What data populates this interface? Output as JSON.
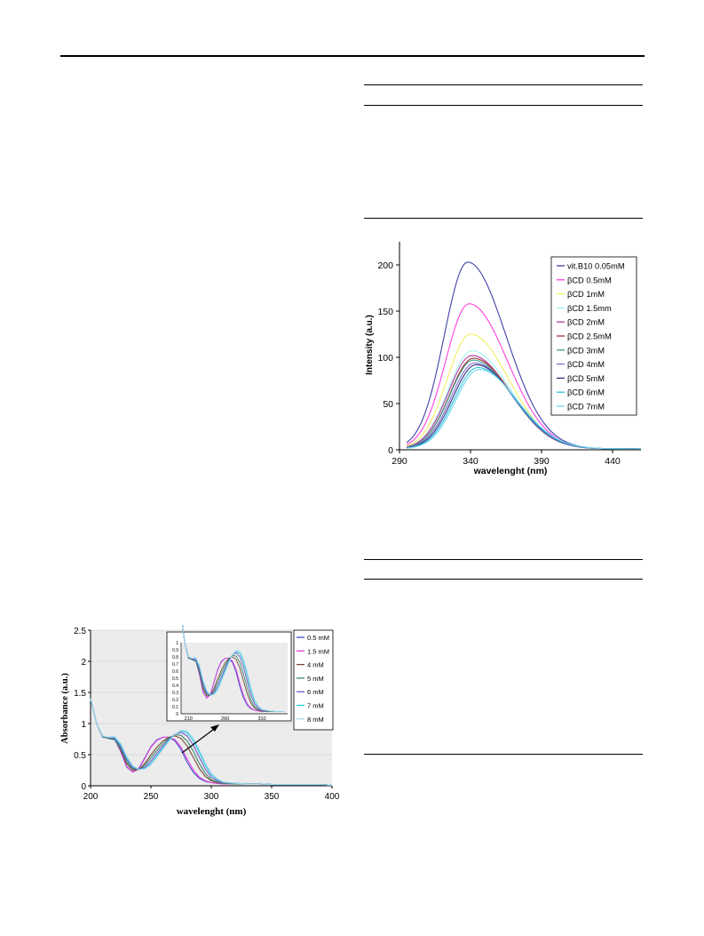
{
  "charts": [
    {
      "type": "line",
      "id": "absorbance",
      "xlabel": "wavelenght  (nm)",
      "ylabel": "Absorbance (a.u.)",
      "xlim": [
        200,
        400
      ],
      "ylim": [
        0,
        2.5
      ],
      "x_ticks": [
        "200",
        "250",
        "300",
        "350",
        "400"
      ],
      "y_ticks": [
        "0",
        "0.5",
        "1",
        "1.5",
        "2",
        "2.5"
      ],
      "legend_position": "right",
      "series": [
        {
          "name": "0.5 mM",
          "color": "#3f48cc"
        },
        {
          "name": "1.5 mM",
          "color": "#e040e0"
        },
        {
          "name": "4 mM",
          "color": "#7a4a3a"
        },
        {
          "name": "5 mM",
          "color": "#3a8a6a"
        },
        {
          "name": "6 mM",
          "color": "#6a5acd"
        },
        {
          "name": "7 mM",
          "color": "#22c8e6"
        },
        {
          "name": "8 mM",
          "color": "#9fd8e8"
        }
      ],
      "curves": {
        "x": [
          200,
          205,
          210,
          215,
          220,
          225,
          230,
          235,
          240,
          245,
          250,
          255,
          260,
          265,
          270,
          275,
          280,
          285,
          290,
          295,
          300,
          305,
          310,
          320,
          330,
          340,
          350,
          360,
          370,
          380,
          390,
          400
        ],
        "series_values": [
          [
            1.4,
            1.0,
            0.78,
            0.77,
            0.75,
            0.55,
            0.3,
            0.22,
            0.28,
            0.45,
            0.63,
            0.74,
            0.78,
            0.78,
            0.72,
            0.58,
            0.38,
            0.22,
            0.12,
            0.07,
            0.05,
            0.04,
            0.03,
            0.03,
            0.03,
            0.03,
            0.02,
            0.02,
            0.02,
            0.02,
            0.02,
            0.01
          ],
          [
            1.4,
            1.0,
            0.79,
            0.77,
            0.76,
            0.56,
            0.31,
            0.22,
            0.27,
            0.44,
            0.62,
            0.73,
            0.78,
            0.78,
            0.74,
            0.62,
            0.43,
            0.26,
            0.14,
            0.08,
            0.05,
            0.04,
            0.03,
            0.03,
            0.03,
            0.03,
            0.02,
            0.02,
            0.02,
            0.02,
            0.02,
            0.01
          ],
          [
            1.4,
            1.0,
            0.79,
            0.76,
            0.74,
            0.58,
            0.35,
            0.25,
            0.26,
            0.36,
            0.5,
            0.62,
            0.72,
            0.78,
            0.8,
            0.76,
            0.64,
            0.46,
            0.28,
            0.15,
            0.08,
            0.05,
            0.04,
            0.03,
            0.03,
            0.03,
            0.02,
            0.02,
            0.02,
            0.02,
            0.02,
            0.01
          ],
          [
            1.4,
            1.0,
            0.79,
            0.76,
            0.74,
            0.6,
            0.38,
            0.27,
            0.26,
            0.33,
            0.45,
            0.57,
            0.68,
            0.77,
            0.82,
            0.81,
            0.72,
            0.56,
            0.36,
            0.2,
            0.1,
            0.06,
            0.04,
            0.03,
            0.03,
            0.03,
            0.02,
            0.02,
            0.02,
            0.02,
            0.02,
            0.01
          ],
          [
            1.4,
            1.0,
            0.8,
            0.77,
            0.76,
            0.63,
            0.42,
            0.29,
            0.26,
            0.3,
            0.4,
            0.52,
            0.64,
            0.75,
            0.83,
            0.86,
            0.8,
            0.66,
            0.46,
            0.27,
            0.14,
            0.08,
            0.05,
            0.04,
            0.03,
            0.03,
            0.02,
            0.02,
            0.02,
            0.02,
            0.02,
            0.01
          ],
          [
            1.4,
            1.0,
            0.8,
            0.78,
            0.78,
            0.66,
            0.45,
            0.31,
            0.26,
            0.28,
            0.36,
            0.48,
            0.61,
            0.73,
            0.83,
            0.88,
            0.85,
            0.73,
            0.54,
            0.33,
            0.18,
            0.1,
            0.06,
            0.04,
            0.03,
            0.03,
            0.02,
            0.02,
            0.02,
            0.02,
            0.02,
            0.01
          ],
          [
            1.4,
            1.0,
            0.8,
            0.78,
            0.79,
            0.68,
            0.47,
            0.32,
            0.26,
            0.27,
            0.34,
            0.46,
            0.59,
            0.72,
            0.83,
            0.89,
            0.88,
            0.77,
            0.58,
            0.37,
            0.2,
            0.11,
            0.06,
            0.04,
            0.03,
            0.03,
            0.02,
            0.02,
            0.02,
            0.02,
            0.02,
            0.01
          ]
        ]
      },
      "inset": {
        "x_ticks": [
          "210",
          "260",
          "310"
        ],
        "y_ticks": [
          "0",
          "0.1",
          "0.2",
          "0.3",
          "0.4",
          "0.5",
          "0.6",
          "0.7",
          "0.8",
          "0.9",
          "1"
        ],
        "xlim": [
          200,
          345
        ],
        "ylim": [
          0,
          1
        ]
      }
    },
    {
      "type": "line",
      "id": "fluorescence",
      "xlabel": "wavelenght (nm)",
      "ylabel": "Intensity (a.u.)",
      "xlim": [
        290,
        460
      ],
      "ylim": [
        0,
        225
      ],
      "x_ticks": [
        "290",
        "340",
        "390",
        "440"
      ],
      "y_ticks": [
        "0",
        "50",
        "100",
        "150",
        "200"
      ],
      "legend_position": "top-right",
      "series": [
        {
          "name": "vit.B10 0.05mM",
          "color": "#3f3fa8",
          "peak": 202,
          "center": 338
        },
        {
          "name": "βCD 0.5mM",
          "color": "#ff3fe0",
          "peak": 157,
          "center": 339
        },
        {
          "name": " βCD 1mM",
          "color": "#f0f060",
          "peak": 124,
          "center": 340
        },
        {
          "name": "βCD 1.5mm",
          "color": "#a0f0f0",
          "peak": 106,
          "center": 341
        },
        {
          "name": "βCD 2mM",
          "color": "#b03a9a",
          "peak": 101,
          "center": 341
        },
        {
          "name": "βCD 2.5mM",
          "color": "#a03030",
          "peak": 98,
          "center": 342
        },
        {
          "name": "βCD 3mM",
          "color": "#40a090",
          "peak": 96,
          "center": 342
        },
        {
          "name": "βCD 4mM",
          "color": "#8070d0",
          "peak": 93,
          "center": 343
        },
        {
          "name": "βCD 5mM",
          "color": "#303080",
          "peak": 91,
          "center": 344
        },
        {
          "name": "βCD 6mM",
          "color": "#30c0e0",
          "peak": 88,
          "center": 345
        },
        {
          "name": "βCD 7mM",
          "color": "#70d8f0",
          "peak": 86,
          "center": 346
        }
      ]
    }
  ]
}
